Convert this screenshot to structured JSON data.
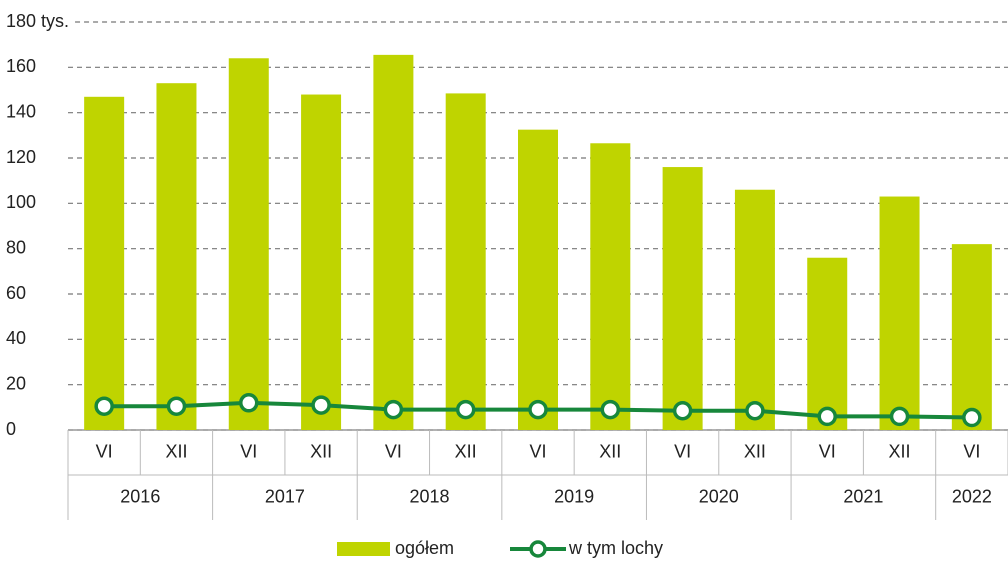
{
  "chart_data": {
    "type": "bar",
    "categories": [
      "VI",
      "XII",
      "VI",
      "XII",
      "VI",
      "XII",
      "VI",
      "XII",
      "VI",
      "XII",
      "VI",
      "XII",
      "VI"
    ],
    "years": [
      "2016",
      "2017",
      "2018",
      "2019",
      "2020",
      "2021",
      "2022"
    ],
    "series": [
      {
        "name": "ogółem",
        "type": "bar",
        "color": "#bfd400",
        "values": [
          147,
          153,
          164,
          148,
          165.5,
          148.5,
          132.5,
          126.5,
          116,
          106,
          76,
          103,
          82
        ]
      },
      {
        "name": "w tym lochy",
        "type": "line",
        "color": "#17873b",
        "values": [
          10.5,
          10.5,
          12,
          11,
          9,
          9,
          9,
          9,
          8.5,
          8.5,
          6,
          6,
          5.5
        ]
      }
    ],
    "ylim": [
      0,
      180
    ],
    "yticks": [
      0,
      20,
      40,
      60,
      80,
      100,
      120,
      140,
      160,
      {
        "value": 180,
        "label": "180 tys."
      }
    ],
    "grid": true
  }
}
